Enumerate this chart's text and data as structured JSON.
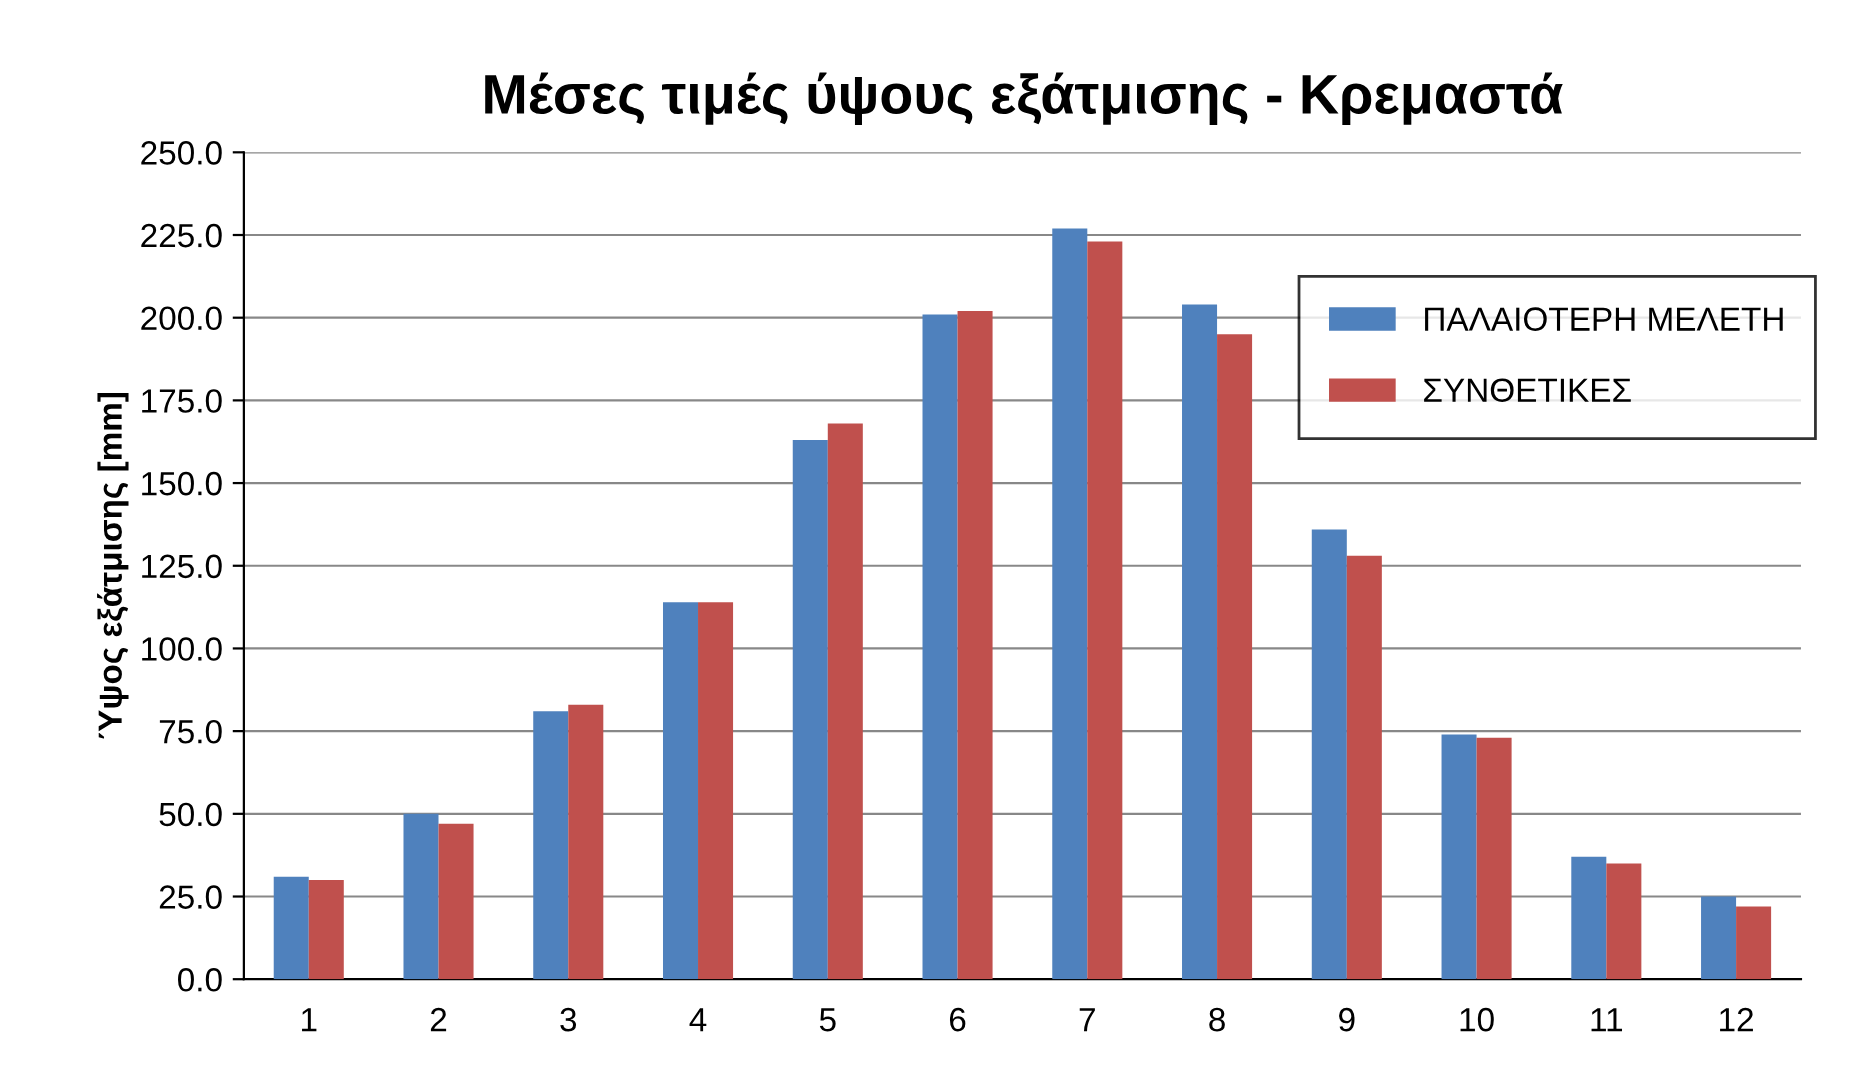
{
  "chart_data": {
    "type": "bar",
    "title": "Μέσες τιμές ύψους εξάτμισης - Κρεμαστά",
    "ylabel": "Ύψος εξάτμισης [mm]",
    "categories": [
      "1",
      "2",
      "3",
      "4",
      "5",
      "6",
      "7",
      "8",
      "9",
      "10",
      "11",
      "12"
    ],
    "series": [
      {
        "name": "ΠΑΛΑΙΟΤΕΡΗ ΜΕΛΕΤΗ",
        "color": "#4f81bd",
        "values": [
          31,
          50,
          81,
          114,
          163,
          201,
          227,
          204,
          136,
          74,
          37,
          25
        ]
      },
      {
        "name": "ΣΥΝΘΕΤΙΚΕΣ",
        "color": "#c0504d",
        "values": [
          30,
          47,
          83,
          114,
          168,
          202,
          223,
          195,
          128,
          73,
          35,
          22
        ]
      }
    ],
    "ylim": [
      0,
      250
    ],
    "yticks": [
      {
        "value": 0,
        "label": "0.0"
      },
      {
        "value": 25,
        "label": "25.0"
      },
      {
        "value": 50,
        "label": "50.0"
      },
      {
        "value": 75,
        "label": "75.0"
      },
      {
        "value": 100,
        "label": "100.0"
      },
      {
        "value": 125,
        "label": "125.0"
      },
      {
        "value": 150,
        "label": "150.0"
      },
      {
        "value": 175,
        "label": "175.0"
      },
      {
        "value": 200,
        "label": "200.0"
      },
      {
        "value": 225,
        "label": "225.0"
      },
      {
        "value": 250,
        "label": "250.0"
      }
    ],
    "grid": "y",
    "legend": "top right"
  }
}
